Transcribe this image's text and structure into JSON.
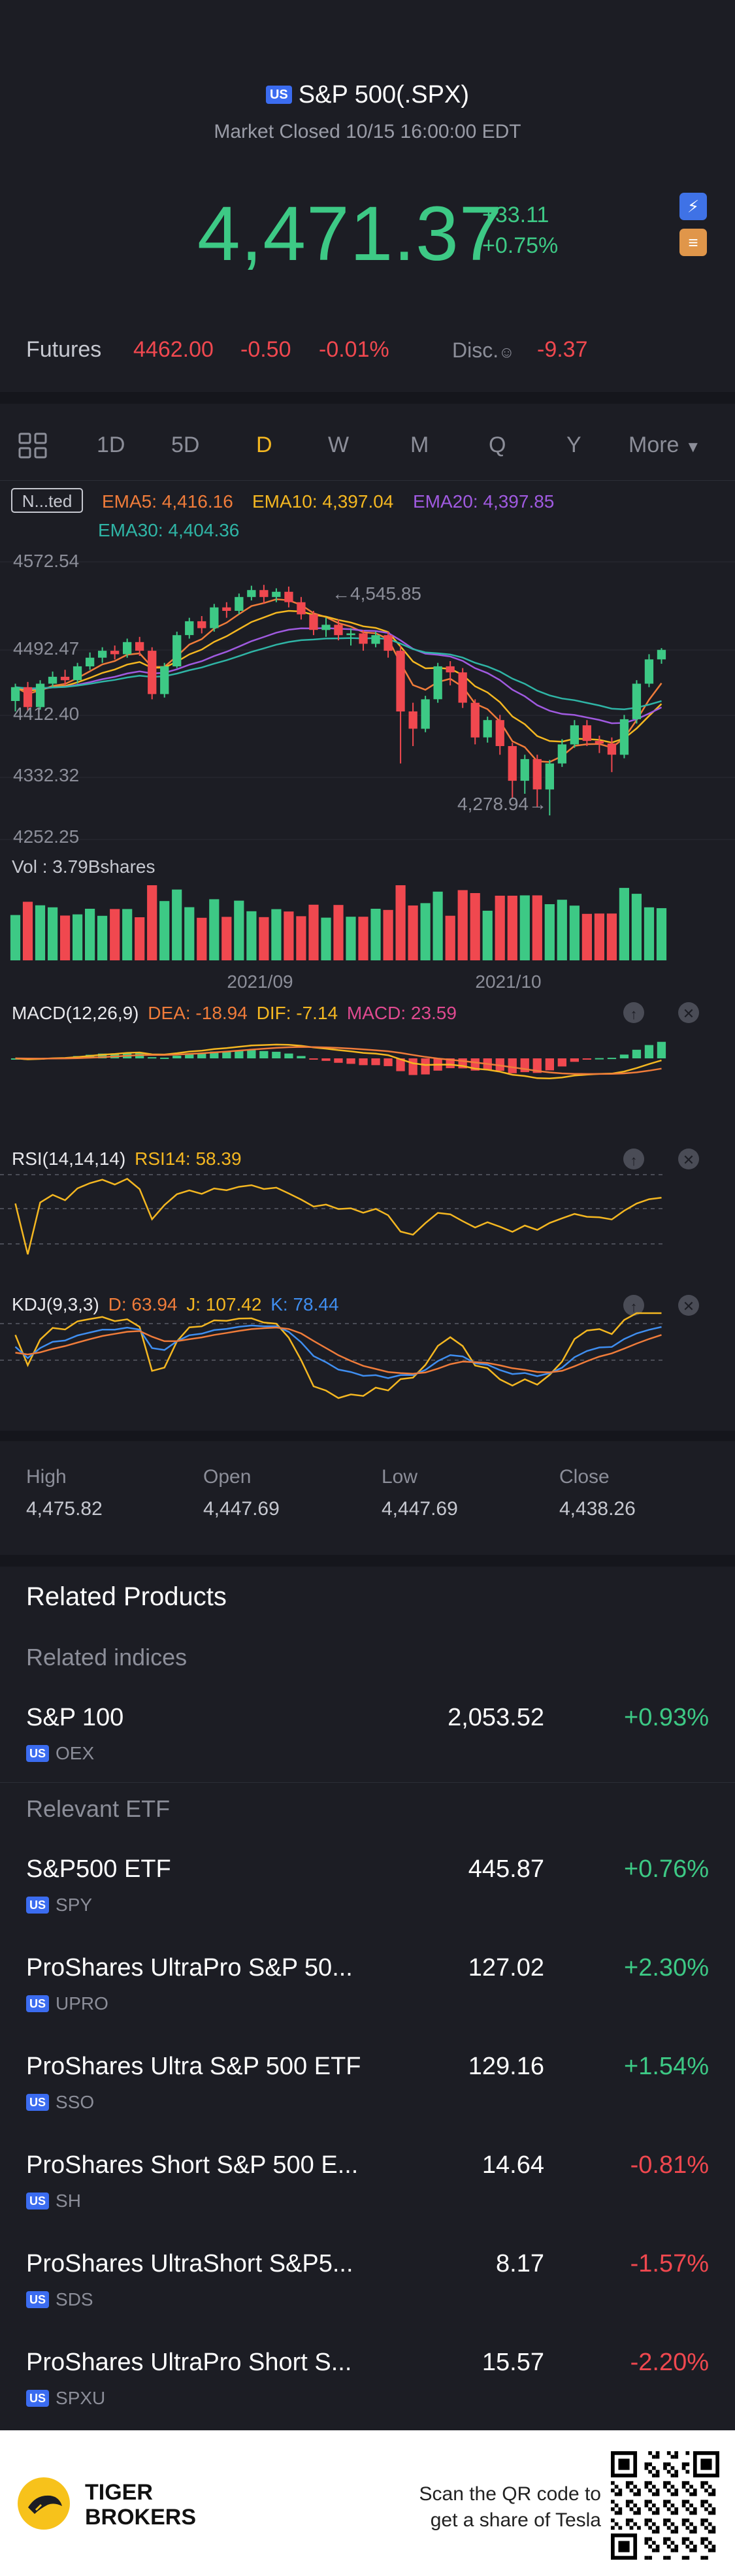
{
  "header": {
    "region_badge": "US",
    "title": "S&P 500(.SPX)",
    "status": "Market Closed 10/15 16:00:00 EDT",
    "price": "4,471.37",
    "change": "+33.11",
    "change_pct": "+0.75%",
    "side_icons": [
      "lightning-icon",
      "layers-icon"
    ]
  },
  "futures": {
    "label": "Futures",
    "price": "4462.00",
    "change": "-0.50",
    "change_pct": "-0.01%",
    "disc_label": "Disc.",
    "disc_value": "-9.37"
  },
  "tabs": {
    "items": [
      "1D",
      "5D",
      "D",
      "W",
      "M",
      "Q",
      "Y"
    ],
    "active": "D",
    "more": "More"
  },
  "chart": {
    "adjust_label": "N...ted",
    "ema": [
      {
        "label": "EMA5: 4,416.16",
        "color": "#f07c3a"
      },
      {
        "label": "EMA10: 4,397.04",
        "color": "#f4b721"
      },
      {
        "label": "EMA20: 4,397.85",
        "color": "#a05ae0"
      },
      {
        "label": "EMA30: 4,404.36",
        "color": "#2fb5a6"
      }
    ],
    "y_ticks": [
      "4572.54",
      "4492.47",
      "4412.40",
      "4332.32",
      "4252.25"
    ],
    "high_marker": "4,545.85",
    "low_marker": "4,278.94",
    "vol_label": "Vol  : 3.79Bshares",
    "x_ticks": [
      "2021/09",
      "2021/10"
    ],
    "macd": {
      "title": "MACD(12,26,9)",
      "dea": "DEA: -18.94",
      "dif": "DIF: -7.14",
      "macd": "MACD: 23.59"
    },
    "rsi": {
      "title": "RSI(14,14,14)",
      "rsi14": "RSI14: 58.39"
    },
    "kdj": {
      "title": "KDJ(9,3,3)",
      "d": "D: 63.94",
      "j": "J: 107.42",
      "k": "K: 78.44"
    },
    "colors": {
      "up": "#3dc985",
      "down": "#f0484f"
    }
  },
  "chart_data": {
    "type": "candlestick",
    "y_range": [
      4252.25,
      4572.54
    ],
    "x_ticks": [
      "2021/09",
      "2021/10"
    ],
    "candles": [
      [
        4412,
        4428,
        4400,
        4432
      ],
      [
        4428,
        4405,
        4400,
        4434
      ],
      [
        4405,
        4432,
        4402,
        4436
      ],
      [
        4432,
        4440,
        4428,
        4446
      ],
      [
        4440,
        4436,
        4430,
        4448
      ],
      [
        4436,
        4452,
        4432,
        4456
      ],
      [
        4452,
        4462,
        4448,
        4468
      ],
      [
        4462,
        4470,
        4456,
        4474
      ],
      [
        4470,
        4466,
        4460,
        4476
      ],
      [
        4466,
        4480,
        4462,
        4484
      ],
      [
        4480,
        4470,
        4464,
        4486
      ],
      [
        4470,
        4420,
        4414,
        4474
      ],
      [
        4420,
        4452,
        4416,
        4456
      ],
      [
        4452,
        4488,
        4450,
        4492
      ],
      [
        4488,
        4504,
        4484,
        4508
      ],
      [
        4504,
        4496,
        4490,
        4510
      ],
      [
        4496,
        4520,
        4492,
        4524
      ],
      [
        4520,
        4516,
        4508,
        4526
      ],
      [
        4516,
        4532,
        4512,
        4536
      ],
      [
        4532,
        4540,
        4528,
        4545
      ],
      [
        4540,
        4532,
        4524,
        4546
      ],
      [
        4532,
        4538,
        4526,
        4542
      ],
      [
        4538,
        4526,
        4520,
        4544
      ],
      [
        4526,
        4512,
        4506,
        4532
      ],
      [
        4512,
        4494,
        4488,
        4516
      ],
      [
        4494,
        4500,
        4486,
        4508
      ],
      [
        4500,
        4488,
        4482,
        4506
      ],
      [
        4488,
        4490,
        4476,
        4496
      ],
      [
        4490,
        4478,
        4470,
        4494
      ],
      [
        4478,
        4488,
        4474,
        4492
      ],
      [
        4488,
        4470,
        4462,
        4492
      ],
      [
        4470,
        4400,
        4340,
        4476
      ],
      [
        4400,
        4380,
        4360,
        4410
      ],
      [
        4380,
        4414,
        4376,
        4418
      ],
      [
        4414,
        4452,
        4410,
        4456
      ],
      [
        4452,
        4445,
        4430,
        4458
      ],
      [
        4445,
        4410,
        4404,
        4450
      ],
      [
        4410,
        4370,
        4362,
        4414
      ],
      [
        4370,
        4390,
        4364,
        4394
      ],
      [
        4390,
        4360,
        4350,
        4396
      ],
      [
        4360,
        4320,
        4300,
        4364
      ],
      [
        4320,
        4345,
        4305,
        4350
      ],
      [
        4345,
        4310,
        4290,
        4350
      ],
      [
        4310,
        4340,
        4280,
        4344
      ],
      [
        4340,
        4362,
        4336,
        4368
      ],
      [
        4362,
        4384,
        4358,
        4390
      ],
      [
        4384,
        4366,
        4360,
        4390
      ],
      [
        4366,
        4363,
        4352,
        4372
      ],
      [
        4363,
        4350,
        4330,
        4370
      ],
      [
        4350,
        4391,
        4346,
        4396
      ],
      [
        4391,
        4432,
        4386,
        4436
      ],
      [
        4432,
        4460,
        4428,
        4466
      ],
      [
        4460,
        4471,
        4455,
        4473
      ]
    ]
  },
  "ohlc": [
    {
      "label": "High",
      "value": "4,475.82"
    },
    {
      "label": "Open",
      "value": "4,447.69"
    },
    {
      "label": "Low",
      "value": "4,447.69"
    },
    {
      "label": "Close",
      "value": "4,438.26"
    }
  ],
  "related": {
    "title": "Related Products",
    "indices_label": "Related indices",
    "indices": [
      {
        "name": "S&P 100",
        "region": "US",
        "ticker": "OEX",
        "price": "2,053.52",
        "pct": "+0.93%",
        "dir": "up"
      }
    ],
    "etf_label": "Relevant ETF",
    "etfs": [
      {
        "name": "S&P500 ETF",
        "region": "US",
        "ticker": "SPY",
        "price": "445.87",
        "pct": "+0.76%",
        "dir": "up"
      },
      {
        "name": "ProShares UltraPro S&P 50...",
        "region": "US",
        "ticker": "UPRO",
        "price": "127.02",
        "pct": "+2.30%",
        "dir": "up"
      },
      {
        "name": "ProShares Ultra S&P 500 ETF",
        "region": "US",
        "ticker": "SSO",
        "price": "129.16",
        "pct": "+1.54%",
        "dir": "up"
      },
      {
        "name": "ProShares Short S&P 500 E...",
        "region": "US",
        "ticker": "SH",
        "price": "14.64",
        "pct": "-0.81%",
        "dir": "down"
      },
      {
        "name": "ProShares UltraShort S&P5...",
        "region": "US",
        "ticker": "SDS",
        "price": "8.17",
        "pct": "-1.57%",
        "dir": "down"
      },
      {
        "name": "ProShares UltraPro Short S...",
        "region": "US",
        "ticker": "SPXU",
        "price": "15.57",
        "pct": "-2.20%",
        "dir": "down"
      }
    ]
  },
  "footer": {
    "brand_line1": "TIGER",
    "brand_line2": "BROKERS",
    "qr_line1": "Scan the QR code to",
    "qr_line2": "get a share of Tesla"
  }
}
